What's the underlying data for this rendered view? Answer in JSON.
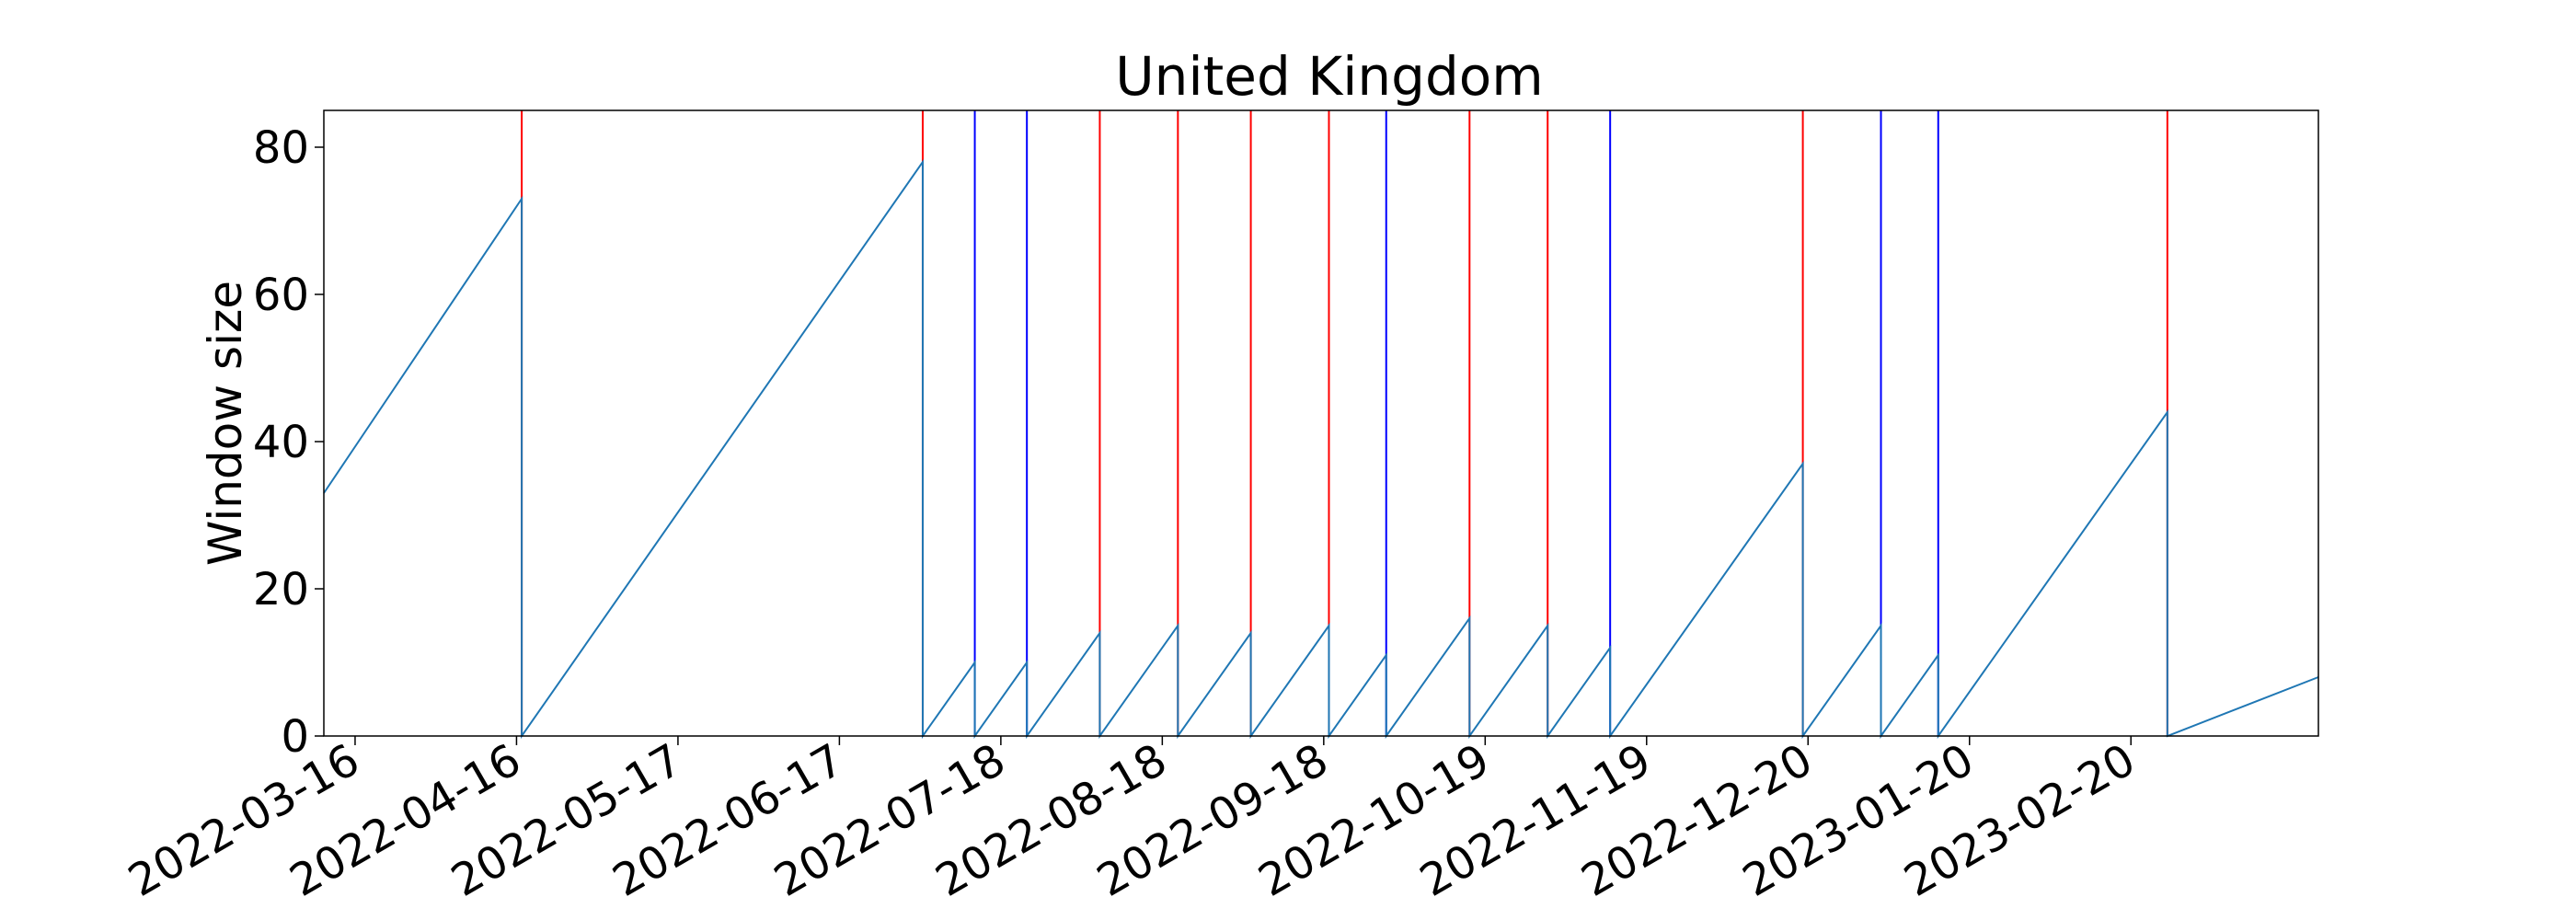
{
  "chart_data": {
    "type": "line",
    "title": "United Kingdom",
    "xlabel": "",
    "ylabel": "Window size",
    "ylim": [
      0,
      85
    ],
    "xlim": [
      "2022-03-10",
      "2023-03-28"
    ],
    "yticks": [
      0,
      20,
      40,
      60,
      80
    ],
    "xticks": [
      "2022-03-16",
      "2022-04-16",
      "2022-05-17",
      "2022-06-17",
      "2022-07-18",
      "2022-08-18",
      "2022-09-18",
      "2022-10-19",
      "2022-11-19",
      "2022-12-20",
      "2023-01-20",
      "2023-02-20"
    ],
    "grid": false,
    "legend": "none",
    "colors": {
      "series": "#1f77b4",
      "red_marker": "#ff0000",
      "blue_marker": "#0000ff"
    },
    "series": [
      {
        "values": [
          {
            "x": "2022-03-10",
            "y": 33
          },
          {
            "x": "2022-04-17",
            "y": 73
          },
          {
            "x": "2022-04-17",
            "y": 0
          },
          {
            "x": "2022-07-03",
            "y": 78
          },
          {
            "x": "2022-07-03",
            "y": 0
          },
          {
            "x": "2022-07-13",
            "y": 10
          },
          {
            "x": "2022-07-13",
            "y": 0
          },
          {
            "x": "2022-07-23",
            "y": 10
          },
          {
            "x": "2022-07-23",
            "y": 0
          },
          {
            "x": "2022-08-06",
            "y": 14
          },
          {
            "x": "2022-08-06",
            "y": 0
          },
          {
            "x": "2022-08-21",
            "y": 15
          },
          {
            "x": "2022-08-21",
            "y": 0
          },
          {
            "x": "2022-09-04",
            "y": 14
          },
          {
            "x": "2022-09-04",
            "y": 0
          },
          {
            "x": "2022-09-19",
            "y": 15
          },
          {
            "x": "2022-09-19",
            "y": 0
          },
          {
            "x": "2022-09-30",
            "y": 11
          },
          {
            "x": "2022-09-30",
            "y": 0
          },
          {
            "x": "2022-10-16",
            "y": 16
          },
          {
            "x": "2022-10-16",
            "y": 0
          },
          {
            "x": "2022-10-31",
            "y": 15
          },
          {
            "x": "2022-10-31",
            "y": 0
          },
          {
            "x": "2022-11-12",
            "y": 12
          },
          {
            "x": "2022-11-12",
            "y": 0
          },
          {
            "x": "2022-12-19",
            "y": 37
          },
          {
            "x": "2022-12-19",
            "y": 0
          },
          {
            "x": "2023-01-03",
            "y": 15
          },
          {
            "x": "2023-01-03",
            "y": 0
          },
          {
            "x": "2023-01-14",
            "y": 11
          },
          {
            "x": "2023-01-14",
            "y": 0
          },
          {
            "x": "2023-02-27",
            "y": 44
          },
          {
            "x": "2023-02-27",
            "y": 0
          },
          {
            "x": "2023-03-28",
            "y": 8
          }
        ]
      }
    ],
    "vertical_markers": [
      {
        "x": "2022-04-17",
        "color": "red"
      },
      {
        "x": "2022-07-03",
        "color": "red"
      },
      {
        "x": "2022-07-13",
        "color": "blue"
      },
      {
        "x": "2022-07-23",
        "color": "blue"
      },
      {
        "x": "2022-08-06",
        "color": "red"
      },
      {
        "x": "2022-08-21",
        "color": "red"
      },
      {
        "x": "2022-09-04",
        "color": "red"
      },
      {
        "x": "2022-09-19",
        "color": "red"
      },
      {
        "x": "2022-09-30",
        "color": "blue"
      },
      {
        "x": "2022-10-16",
        "color": "red"
      },
      {
        "x": "2022-10-31",
        "color": "red"
      },
      {
        "x": "2022-11-12",
        "color": "blue"
      },
      {
        "x": "2022-12-19",
        "color": "red"
      },
      {
        "x": "2023-01-03",
        "color": "blue"
      },
      {
        "x": "2023-01-14",
        "color": "blue"
      },
      {
        "x": "2023-02-27",
        "color": "red"
      }
    ]
  }
}
